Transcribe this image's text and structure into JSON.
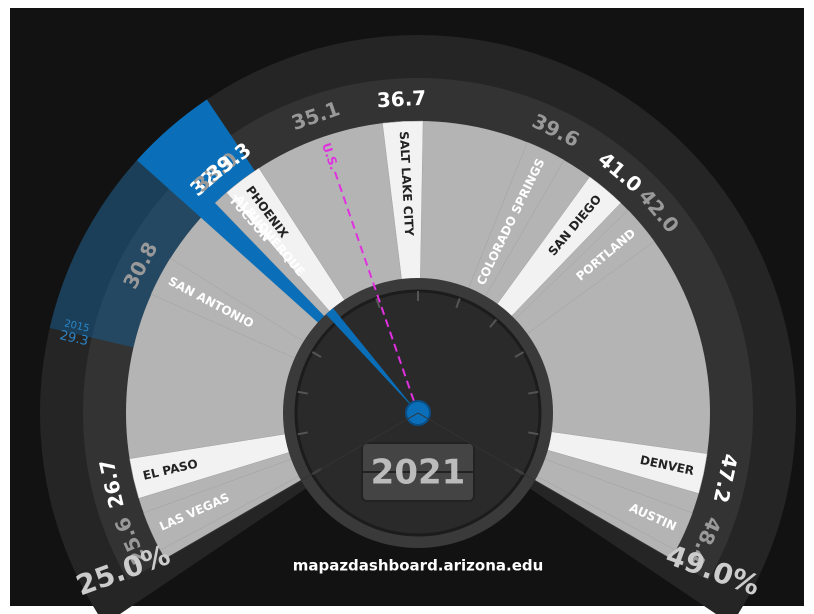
{
  "chart_data": {
    "type": "gauge",
    "year": "2021",
    "footer": "mapazdashboard.arizona.edu",
    "ylim": [
      25,
      49
    ],
    "ticks": [
      {
        "value": 25,
        "label": "25.0%"
      },
      {
        "value": 49,
        "label": "49.0%"
      }
    ],
    "categories": [
      "LAS VEGAS",
      "EL PASO",
      "SAN ANTONIO",
      "TUCSON",
      "ALBUQUERQUE",
      "PHOENIX",
      "SALT LAKE CITY",
      "COLORADO SPRINGS",
      "SAN DIEGO",
      "PORTLAND",
      "DENVER",
      "AUSTIN"
    ],
    "values": [
      25.6,
      26.7,
      30.8,
      32.9,
      33.0,
      33.3,
      36.7,
      39.6,
      41.0,
      42.0,
      47.2,
      48.4
    ],
    "value_labels": [
      "25.6",
      "26.7",
      "30.8",
      "32.9",
      "33.0",
      "33.3",
      "36.7",
      "39.6",
      "41.0",
      "42.0",
      "47.2",
      "48.4"
    ],
    "colors": [
      "#b4b4b4",
      "#f2f2f2",
      "#b4b4b4",
      "#0a6fb8",
      "#b4b4b4",
      "#f2f2f2",
      "#f2f2f2",
      "#b4b4b4",
      "#f2f2f2",
      "#b4b4b4",
      "#f2f2f2",
      "#b4b4b4"
    ],
    "highlight": 3,
    "reference": {
      "name": "U.S.",
      "value": 35.1,
      "value_label": "35.1",
      "color": "#e030e0"
    },
    "previous": {
      "label": "2015",
      "value": 29.3,
      "value_label": "29.3"
    }
  }
}
